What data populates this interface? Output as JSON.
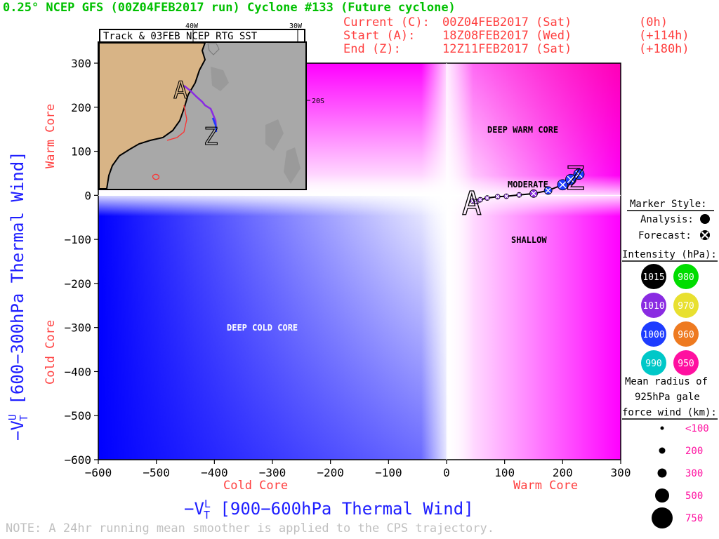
{
  "header": {
    "title": "0.25° NCEP GFS (00Z04FEB2017 run) Cyclone #133 (Future cyclone)",
    "current_label": "Current (C):",
    "current_time": "00Z04FEB2017 (Sat)",
    "current_offset": "(0h)",
    "start_label": "Start (A):",
    "start_time": "18Z08FEB2017 (Wed)",
    "start_offset": "(+114h)",
    "end_label": "End (Z):",
    "end_time": "12Z11FEB2017 (Sat)",
    "end_offset": "(+180h)"
  },
  "inset": {
    "title": "Track & 03FEB NCEP RTG SST",
    "lon_labels": [
      "40W",
      "30W"
    ],
    "lat_label": "20S",
    "start_letter": "A",
    "end_letter": "Z",
    "land_color": "#d8b486",
    "ocean_color": "#a8a8a8"
  },
  "chart_data": {
    "type": "scatter",
    "xlabel": "−V_T^L [900−600hPa Thermal Wind]",
    "ylabel": "−V_T^U [600−300hPa Thermal Wind]",
    "xlabel_main": "−V",
    "xlabel_sup": "L",
    "xlabel_sub": "T",
    "xlabel_rest": " [900−600hPa Thermal Wind]",
    "ylabel_main": "−V",
    "ylabel_sup": "U",
    "ylabel_sub": "T",
    "ylabel_rest": " [600−300hPa Thermal Wind]",
    "xlim": [
      -600,
      300
    ],
    "ylim": [
      -600,
      300
    ],
    "xticks": [
      -600,
      -500,
      -400,
      -300,
      -200,
      -100,
      0,
      100,
      200,
      300
    ],
    "yticks": [
      -600,
      -500,
      -400,
      -300,
      -200,
      -100,
      0,
      100,
      200,
      300
    ],
    "x_side_labels": {
      "left": "Cold Core",
      "right": "Warm Core"
    },
    "y_side_labels": {
      "bottom": "Cold Core",
      "top": "Warm Core"
    },
    "region_labels": [
      "DEEP WARM CORE",
      "MODERATE",
      "SHALLOW",
      "DEEP COLD CORE"
    ],
    "track_start_letter": "A",
    "track_end_letter": "Z",
    "track": [
      {
        "x": 45,
        "y": -13,
        "intensity": 1010,
        "kind": "forecast",
        "size": "<100"
      },
      {
        "x": 52,
        "y": -14,
        "intensity": 1010,
        "kind": "forecast",
        "size": "<100"
      },
      {
        "x": 58,
        "y": -10,
        "intensity": 1010,
        "kind": "forecast",
        "size": "<100"
      },
      {
        "x": 70,
        "y": -6,
        "intensity": 1010,
        "kind": "forecast",
        "size": "<100"
      },
      {
        "x": 88,
        "y": -3,
        "intensity": 1010,
        "kind": "forecast",
        "size": "<100"
      },
      {
        "x": 103,
        "y": -2,
        "intensity": 1010,
        "kind": "forecast",
        "size": "<100"
      },
      {
        "x": 125,
        "y": 1,
        "intensity": 1010,
        "kind": "forecast",
        "size": "<100"
      },
      {
        "x": 150,
        "y": 4,
        "intensity": 1010,
        "kind": "forecast",
        "size": "200"
      },
      {
        "x": 175,
        "y": 11,
        "intensity": 1000,
        "kind": "forecast",
        "size": "200"
      },
      {
        "x": 200,
        "y": 24,
        "intensity": 1000,
        "kind": "forecast",
        "size": "300"
      },
      {
        "x": 214,
        "y": 36,
        "intensity": 1000,
        "kind": "forecast",
        "size": "300"
      },
      {
        "x": 228,
        "y": 48,
        "intensity": 1000,
        "kind": "forecast",
        "size": "300"
      }
    ]
  },
  "legend": {
    "marker_style_title": "Marker Style:",
    "analysis_label": "Analysis:",
    "forecast_label": "Forecast:",
    "intensity_title": "Intensity (hPa):",
    "intensity": [
      {
        "value": "1015",
        "color": "#000000",
        "text_color": "#ffffff"
      },
      {
        "value": "980",
        "color": "#00dd00",
        "text_color": "#ffffff"
      },
      {
        "value": "1010",
        "color": "#8a2be2",
        "text_color": "#ffffff"
      },
      {
        "value": "970",
        "color": "#e8e030",
        "text_color": "#ffffff"
      },
      {
        "value": "1000",
        "color": "#1e3cff",
        "text_color": "#ffffff"
      },
      {
        "value": "960",
        "color": "#ee7a20",
        "text_color": "#ffffff"
      },
      {
        "value": "990",
        "color": "#00c8c8",
        "text_color": "#ffffff"
      },
      {
        "value": "950",
        "color": "#ff10a0",
        "text_color": "#ffffff"
      }
    ],
    "radius_title_1": "Mean radius of",
    "radius_title_2": "925hPa gale",
    "radius_title_3": "force wind (km):",
    "radius_sizes": [
      {
        "label": "<100",
        "r": 2.5
      },
      {
        "label": "200",
        "r": 4.5
      },
      {
        "label": "300",
        "r": 6.5
      },
      {
        "label": "500",
        "r": 10
      },
      {
        "label": "750",
        "r": 15
      }
    ]
  },
  "note": "NOTE:  A 24hr running mean smoother is applied to the CPS trajectory."
}
